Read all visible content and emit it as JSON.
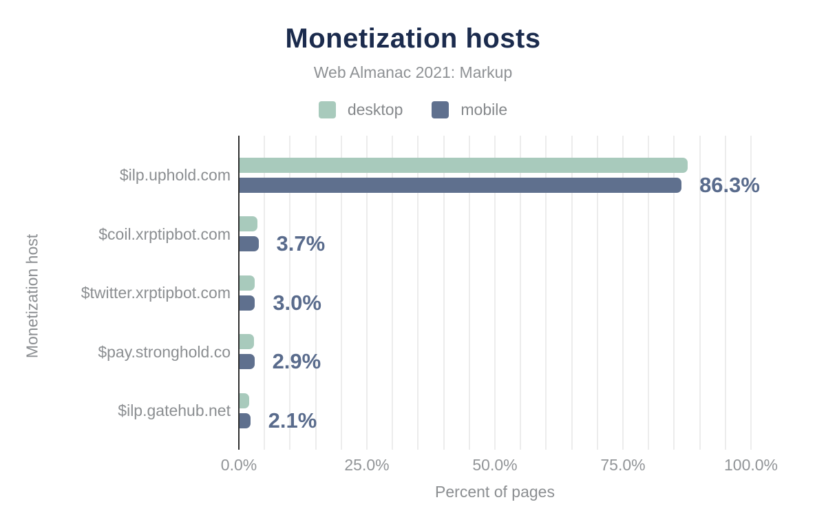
{
  "title": "Monetization hosts",
  "subtitle": "Web Almanac 2021: Markup",
  "legend": [
    {
      "label": "desktop",
      "color": "#a8cabc"
    },
    {
      "label": "mobile",
      "color": "#5f708e"
    }
  ],
  "colors": {
    "title_text": "#1b2b4d",
    "muted_text": "#8b8e91",
    "annotation_text": "#596b8c",
    "desktop_bar": "#a8cabc",
    "mobile_bar": "#5f708e",
    "axis_line": "#2f2f2f",
    "gridline": "#ececec"
  },
  "chart_data": {
    "type": "bar",
    "orientation": "horizontal",
    "title": "Monetization hosts",
    "subtitle": "Web Almanac 2021: Markup",
    "categories": [
      "$ilp.uphold.com",
      "$coil.xrptipbot.com",
      "$twitter.xrptipbot.com",
      "$pay.stronghold.co",
      "$ilp.gatehub.net"
    ],
    "series": [
      {
        "name": "desktop",
        "color": "#a8cabc",
        "values": [
          87.5,
          3.5,
          3.0,
          2.8,
          1.9
        ]
      },
      {
        "name": "mobile",
        "color": "#5f708e",
        "values": [
          86.3,
          3.7,
          3.0,
          2.9,
          2.1
        ]
      }
    ],
    "annotations": [
      "86.3%",
      "3.7%",
      "3.0%",
      "2.9%",
      "2.1%"
    ],
    "annotation_series": "mobile",
    "xlabel": "Percent of pages",
    "ylabel": "Monetization host",
    "x_ticks": [
      {
        "label": "0.0%",
        "value": 0
      },
      {
        "label": "25.0%",
        "value": 25
      },
      {
        "label": "50.0%",
        "value": 50
      },
      {
        "label": "75.0%",
        "value": 75
      },
      {
        "label": "100.0%",
        "value": 100
      }
    ],
    "xlim": [
      0,
      100
    ],
    "grid": true,
    "grid_step_pct": 5,
    "legend_position": "top"
  }
}
